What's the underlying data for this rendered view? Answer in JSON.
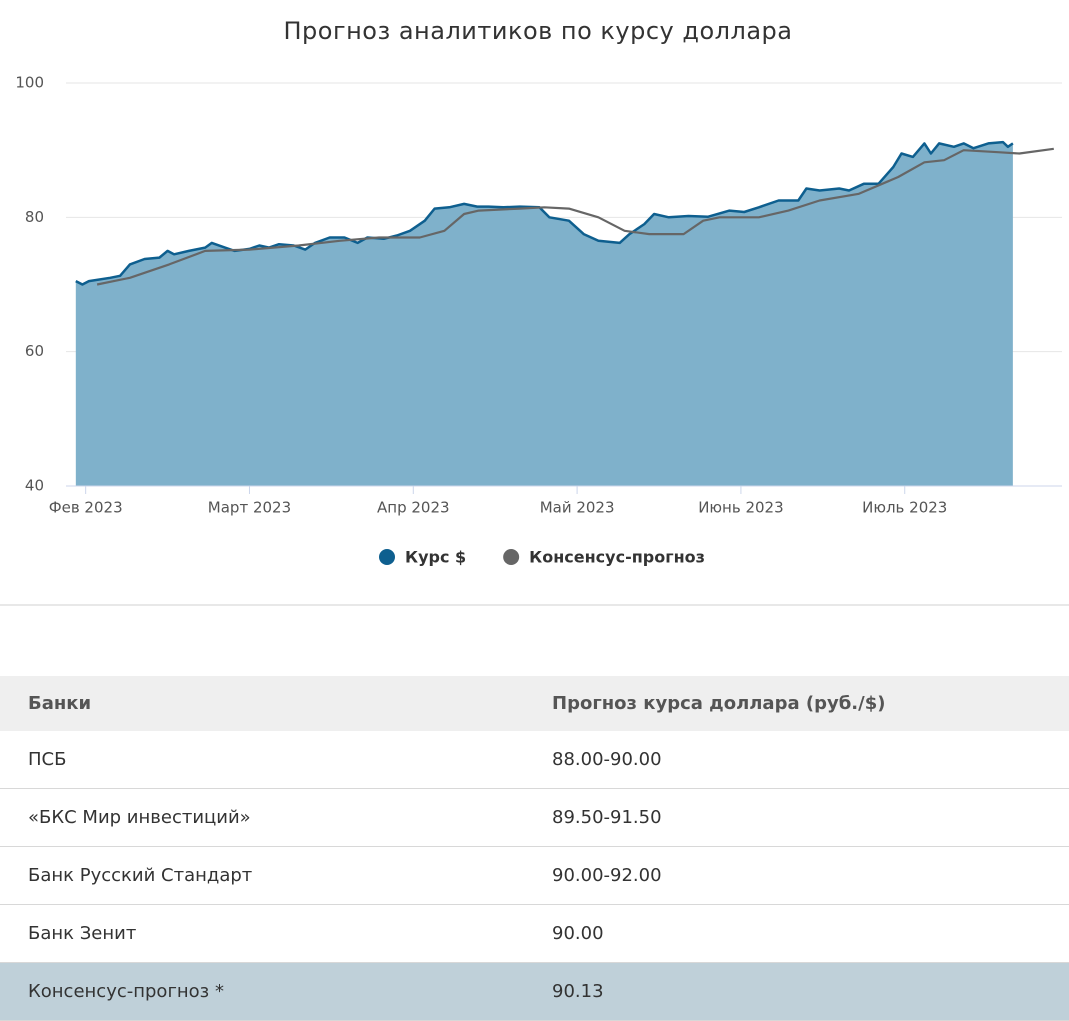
{
  "chart_data": {
    "type": "area",
    "title": "Прогноз аналитиков по курсу доллара",
    "xlim": [
      1.88,
      7.96
    ],
    "xticks": [
      {
        "value": 2,
        "label": "Фев 2023"
      },
      {
        "value": 3,
        "label": "Март 2023"
      },
      {
        "value": 4,
        "label": "Апр 2023"
      },
      {
        "value": 5,
        "label": "Май 2023"
      },
      {
        "value": 6,
        "label": "Июнь 2023"
      },
      {
        "value": 7,
        "label": "Июль 2023"
      }
    ],
    "ylim": [
      40,
      100
    ],
    "yticks": [
      40,
      60,
      80,
      100
    ],
    "grid": true,
    "series": [
      {
        "name": "Курс $",
        "color": "#0e5f8f",
        "fill": "#7fb1cb",
        "x": [
          1.94,
          1.98,
          2.02,
          2.15,
          2.21,
          2.27,
          2.36,
          2.45,
          2.5,
          2.54,
          2.63,
          2.73,
          2.77,
          2.85,
          2.91,
          3.0,
          3.06,
          3.12,
          3.18,
          3.27,
          3.34,
          3.4,
          3.49,
          3.58,
          3.66,
          3.72,
          3.82,
          3.9,
          3.98,
          4.07,
          4.13,
          4.22,
          4.31,
          4.39,
          4.46,
          4.55,
          4.65,
          4.77,
          4.83,
          4.95,
          5.04,
          5.13,
          5.26,
          5.32,
          5.41,
          5.47,
          5.56,
          5.68,
          5.8,
          5.93,
          6.02,
          6.11,
          6.23,
          6.35,
          6.4,
          6.48,
          6.6,
          6.66,
          6.75,
          6.84,
          6.93,
          6.98,
          7.05,
          7.12,
          7.16,
          7.21,
          7.3,
          7.36,
          7.42,
          7.51,
          7.6,
          7.63,
          7.66
        ],
        "values": [
          70.5,
          70.0,
          70.5,
          71.0,
          71.3,
          73.0,
          73.8,
          74.0,
          75.0,
          74.5,
          75.0,
          75.5,
          76.2,
          75.5,
          75.0,
          75.3,
          75.8,
          75.5,
          76.0,
          75.8,
          75.2,
          76.2,
          77.0,
          77.0,
          76.2,
          77.0,
          76.8,
          77.3,
          78.0,
          79.5,
          81.3,
          81.5,
          82.0,
          81.6,
          81.6,
          81.5,
          81.6,
          81.5,
          80.0,
          79.5,
          77.5,
          76.5,
          76.2,
          77.5,
          79.0,
          80.5,
          80.0,
          80.2,
          80.1,
          81.0,
          80.8,
          81.5,
          82.5,
          82.5,
          84.3,
          84.0,
          84.3,
          84.0,
          85.0,
          85.0,
          87.5,
          89.5,
          89.0,
          91.0,
          89.5,
          91.0,
          90.5,
          91.0,
          90.3,
          91.0,
          91.2,
          90.5,
          91.0
        ]
      },
      {
        "name": "Консенсус-прогноз",
        "color": "#666666",
        "x": [
          2.07,
          2.27,
          2.51,
          2.73,
          3.0,
          3.3,
          3.55,
          3.79,
          4.04,
          4.19,
          4.31,
          4.4,
          4.65,
          4.8,
          4.95,
          5.13,
          5.29,
          5.44,
          5.65,
          5.77,
          5.87,
          6.11,
          6.29,
          6.48,
          6.72,
          6.96,
          7.12,
          7.24,
          7.36,
          7.57,
          7.7,
          7.91
        ],
        "values": [
          70.0,
          71.0,
          73.0,
          75.0,
          75.2,
          75.8,
          76.5,
          77.0,
          77.0,
          78.0,
          80.5,
          81.0,
          81.3,
          81.5,
          81.3,
          80.0,
          78.0,
          77.5,
          77.5,
          79.5,
          80.0,
          80.0,
          81.0,
          82.5,
          83.5,
          86.0,
          88.2,
          88.5,
          90.0,
          89.7,
          89.5,
          90.2
        ]
      }
    ]
  },
  "table": {
    "header": [
      "Банки",
      "Прогноз курса доллара (руб./$)"
    ],
    "rows": [
      [
        "ПСБ",
        "88.00-90.00"
      ],
      [
        "«БКС Мир инвестиций»",
        "89.50-91.50"
      ],
      [
        "Банк Русский Стандарт",
        "90.00-92.00"
      ],
      [
        "Банк Зенит",
        "90.00"
      ],
      [
        "Консенсус-прогноз *",
        "90.13"
      ]
    ]
  }
}
